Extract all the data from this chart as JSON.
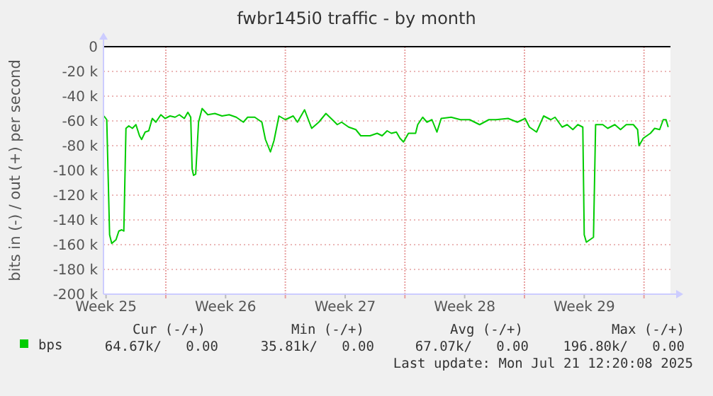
{
  "chart_data": {
    "type": "line",
    "title": "fwbr145i0 traffic - by month",
    "ylabel": "bits in (-) / out (+) per second",
    "x": [
      "2025-06-18T09:00",
      "2025-06-18T13:00",
      "2025-06-18T17:00",
      "2025-06-18T20:00",
      "2025-06-19T02:00",
      "2025-06-19T06:00",
      "2025-06-19T10:00",
      "2025-06-19T13:00",
      "2025-06-19T16:00",
      "2025-06-19T20:00",
      "2025-06-20T01:00",
      "2025-06-20T06:00",
      "2025-06-20T11:00",
      "2025-06-20T14:00",
      "2025-06-20T19:00",
      "2025-06-21T00:00",
      "2025-06-21T05:00",
      "2025-06-21T10:00",
      "2025-06-21T17:00",
      "2025-06-21T23:00",
      "2025-06-22T06:00",
      "2025-06-22T13:00",
      "2025-06-22T19:00",
      "2025-06-23T02:00",
      "2025-06-23T07:00",
      "2025-06-23T11:00",
      "2025-06-23T13:00",
      "2025-06-23T15:00",
      "2025-06-23T18:00",
      "2025-06-23T22:00",
      "2025-06-24T03:00",
      "2025-06-24T11:00",
      "2025-06-24T21:00",
      "2025-06-25T07:00",
      "2025-06-25T17:00",
      "2025-06-26T03:00",
      "2025-06-26T13:00",
      "2025-06-26T19:00",
      "2025-06-27T05:00",
      "2025-06-27T15:00",
      "2025-06-27T20:00",
      "2025-06-28T03:00",
      "2025-06-28T08:00",
      "2025-06-28T15:00",
      "2025-06-29T00:00",
      "2025-06-29T11:00",
      "2025-06-29T17:00",
      "2025-06-30T03:00",
      "2025-06-30T13:00",
      "2025-06-30T23:00",
      "2025-07-01T09:00",
      "2025-07-01T18:00",
      "2025-07-02T01:00",
      "2025-07-02T07:00",
      "2025-07-02T17:00",
      "2025-07-03T03:00",
      "2025-07-03T10:00",
      "2025-07-03T23:00",
      "2025-07-04T09:00",
      "2025-07-04T16:00",
      "2025-07-04T23:00",
      "2025-07-05T05:00",
      "2025-07-05T12:00",
      "2025-07-05T17:00",
      "2025-07-05T22:00",
      "2025-07-06T05:00",
      "2025-07-06T15:00",
      "2025-07-06T18:00",
      "2025-07-07T01:00",
      "2025-07-07T07:00",
      "2025-07-07T14:00",
      "2025-07-07T21:00",
      "2025-07-08T03:00",
      "2025-07-08T17:00",
      "2025-07-09T06:00",
      "2025-07-09T19:00",
      "2025-07-10T09:00",
      "2025-07-10T22:00",
      "2025-07-11T08:00",
      "2025-07-12T01:00",
      "2025-07-12T14:00",
      "2025-07-13T01:00",
      "2025-07-13T07:00",
      "2025-07-13T17:00",
      "2025-07-14T03:00",
      "2025-07-14T13:00",
      "2025-07-14T19:00",
      "2025-07-15T05:00",
      "2025-07-15T12:00",
      "2025-07-15T20:00",
      "2025-07-16T03:00",
      "2025-07-16T10:00",
      "2025-07-16T12:00",
      "2025-07-16T15:00",
      "2025-07-17T01:00",
      "2025-07-17T04:00",
      "2025-07-17T14:00",
      "2025-07-17T21:00",
      "2025-07-18T07:00",
      "2025-07-18T15:00",
      "2025-07-18T23:00",
      "2025-07-19T09:00",
      "2025-07-19T15:00",
      "2025-07-19T17:00",
      "2025-07-19T23:00",
      "2025-07-20T09:00",
      "2025-07-20T15:00",
      "2025-07-20T22:00",
      "2025-07-21T03:00",
      "2025-07-21T07:00",
      "2025-07-21T10:00"
    ],
    "series": [
      {
        "name": "bps",
        "color": "#00cc00",
        "values": [
          -56000,
          -59000,
          -152000,
          -159000,
          -156000,
          -149000,
          -148000,
          -149000,
          -66000,
          -64000,
          -66000,
          -63000,
          -72000,
          -75000,
          -69000,
          -68000,
          -58000,
          -61000,
          -55000,
          -58000,
          -56000,
          -57000,
          -55000,
          -58000,
          -53000,
          -57000,
          -99000,
          -104000,
          -103000,
          -61000,
          -50000,
          -55000,
          -54000,
          -56000,
          -55000,
          -57000,
          -61000,
          -57000,
          -57000,
          -61000,
          -75000,
          -85000,
          -76000,
          -56000,
          -59000,
          -56000,
          -61000,
          -51000,
          -66000,
          -61000,
          -54000,
          -59000,
          -63000,
          -61000,
          -65000,
          -67000,
          -72000,
          -72000,
          -70000,
          -72000,
          -68000,
          -70000,
          -69000,
          -74000,
          -77000,
          -70000,
          -70000,
          -63000,
          -57000,
          -61000,
          -59000,
          -69000,
          -58000,
          -57000,
          -59000,
          -59000,
          -63000,
          -59000,
          -59000,
          -58000,
          -61000,
          -58000,
          -65000,
          -69000,
          -56000,
          -59000,
          -57000,
          -65000,
          -63000,
          -67000,
          -63000,
          -65000,
          -152000,
          -158000,
          -154000,
          -63000,
          -63000,
          -66000,
          -63000,
          -67000,
          -63000,
          -63000,
          -67000,
          -80000,
          -74000,
          -70000,
          -66000,
          -67000,
          -59000,
          -59000,
          -65000
        ]
      }
    ],
    "xlim": [
      "2025-06-18T08:24",
      "2025-07-21T13:12"
    ],
    "xticks": [
      {
        "value": "2025-06-18T12:00",
        "label": "Week 25"
      },
      {
        "value": "2025-06-22",
        "label": null
      },
      {
        "value": "2025-06-25T12:00",
        "label": "Week 26"
      },
      {
        "value": "2025-06-29",
        "label": null
      },
      {
        "value": "2025-07-02T12:00",
        "label": "Week 27"
      },
      {
        "value": "2025-07-06",
        "label": null
      },
      {
        "value": "2025-07-09T12:00",
        "label": "Week 28"
      },
      {
        "value": "2025-07-13",
        "label": null
      },
      {
        "value": "2025-07-16T12:00",
        "label": "Week 29"
      },
      {
        "value": "2025-07-20",
        "label": null
      }
    ],
    "ylim": [
      -200000,
      0
    ],
    "yticks": [
      {
        "value": -200000,
        "label": "-200 k"
      },
      {
        "value": -180000,
        "label": "-180 k"
      },
      {
        "value": -160000,
        "label": "-160 k"
      },
      {
        "value": -140000,
        "label": "-140 k"
      },
      {
        "value": -120000,
        "label": "-120 k"
      },
      {
        "value": -100000,
        "label": "-100 k"
      },
      {
        "value": -80000,
        "label": "-80 k"
      },
      {
        "value": -60000,
        "label": "-60 k"
      },
      {
        "value": -40000,
        "label": "-40 k"
      },
      {
        "value": -20000,
        "label": "-20 k"
      },
      0
    ],
    "ref_lines": [
      {
        "axis": "y",
        "value": 0,
        "color": "#000000"
      }
    ],
    "grid": true,
    "legend": "bottom",
    "marker": "none",
    "line_style": "solid",
    "annotations": [
      "Cur (-/+)",
      "Min (-/+)",
      "Avg (-/+)",
      "Max (-/+)",
      "64.67k/   0.00",
      "35.81k/   0.00",
      "67.07k/   0.00",
      "196.80k/   0.00",
      "Last update: Mon Jul 21 12:20:08 2025"
    ]
  }
}
